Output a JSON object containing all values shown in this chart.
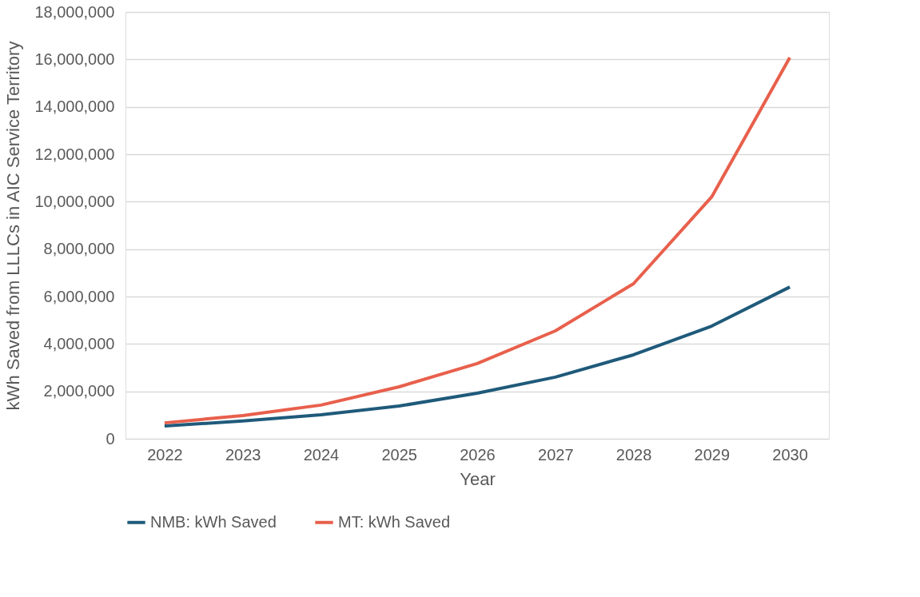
{
  "chart_data": {
    "type": "line",
    "xlabel": "Year",
    "ylabel": "kWh Saved from LLLCs in AIC Service Territory",
    "categories": [
      "2022",
      "2023",
      "2024",
      "2025",
      "2026",
      "2027",
      "2028",
      "2029",
      "2030"
    ],
    "series": [
      {
        "name": "NMB: kWh Saved",
        "color": "#1f5a7a",
        "values": [
          540000,
          750000,
          1010000,
          1380000,
          1920000,
          2600000,
          3540000,
          4750000,
          6400000
        ]
      },
      {
        "name": "MT: kWh Saved",
        "color": "#e8604c",
        "values": [
          670000,
          980000,
          1420000,
          2190000,
          3170000,
          4550000,
          6540000,
          10200000,
          16080000
        ]
      }
    ],
    "ylim": [
      0,
      18000000
    ],
    "yticks": [
      0,
      {
        "value": 2000000,
        "label": "2,000,000"
      },
      {
        "value": 4000000,
        "label": "4,000,000"
      },
      {
        "value": 6000000,
        "label": "6,000,000"
      },
      {
        "value": 8000000,
        "label": "8,000,000"
      },
      {
        "value": 10000000,
        "label": "10,000,000"
      },
      {
        "value": 12000000,
        "label": "12,000,000"
      },
      {
        "value": 14000000,
        "label": "14,000,000"
      },
      {
        "value": 16000000,
        "label": "16,000,000"
      },
      {
        "value": 18000000,
        "label": "18,000,000"
      }
    ],
    "grid": "y",
    "legend": "bottom",
    "marker": "none",
    "line_style": "solid"
  }
}
